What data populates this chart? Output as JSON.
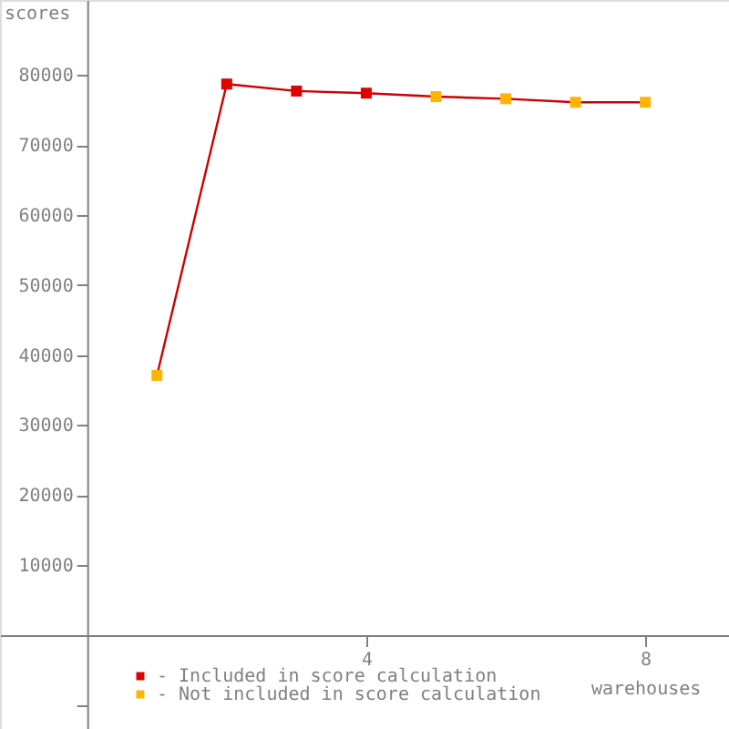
{
  "chart_data": {
    "type": "line",
    "xlabel": "warehouses",
    "ylabel": "scores",
    "xlim": [
      -1.25,
      9.2
    ],
    "ylim": [
      -13400,
      90700
    ],
    "xticks": [
      4,
      8
    ],
    "yticks": [
      {
        "value": -10000,
        "label": null
      },
      10000,
      20000,
      30000,
      40000,
      50000,
      60000,
      70000,
      80000
    ],
    "grid": false,
    "legend": "bottom left",
    "series": [
      {
        "color": "#cc0000",
        "marker": "none",
        "x": [
          1,
          2,
          3,
          4,
          5,
          6,
          7,
          8
        ],
        "values": [
          37100,
          78700,
          77700,
          77400,
          76900,
          76600,
          76100,
          76100
        ]
      },
      {
        "type": "scatter",
        "name": "- Included in score calculation",
        "color": "#e00000",
        "marker": "square",
        "x": [
          2,
          3,
          4
        ],
        "values": [
          78700,
          77700,
          77400
        ]
      },
      {
        "type": "scatter",
        "name": "- Not included in score calculation",
        "color": "#ffb400",
        "marker": "square",
        "x": [
          1,
          5,
          6,
          7,
          8
        ],
        "values": [
          37100,
          76900,
          76600,
          76100,
          76100
        ]
      }
    ]
  }
}
